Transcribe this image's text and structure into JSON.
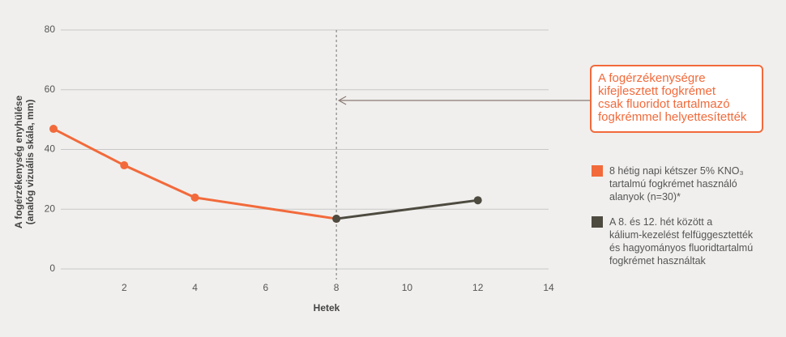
{
  "chart_data": {
    "type": "line",
    "x": [
      0,
      2,
      4,
      8,
      12
    ],
    "series": [
      {
        "name": "8 hétig napi kétszer 5% KNO₃\ntartalmú fogkrémet használó\nalanyok (n=30)*",
        "color": "#f26a3b",
        "values": [
          46.9,
          34.7,
          23.9,
          16.8,
          null
        ]
      },
      {
        "name": "A 8. és 12. hét között a\nkálium-kezelést felfüggesztették\nés hagyományos fluoridtartalmú\nfogkrémet használtak",
        "color": "#4d4a40",
        "values": [
          null,
          null,
          null,
          16.8,
          23.0
        ]
      }
    ],
    "xlabel": "Hetek",
    "ylabel": "A fogérzékenység enyhülése\n(analóg vizuális skála, mm)",
    "xlim": [
      0,
      14
    ],
    "xticks": [
      2,
      4,
      6,
      8,
      10,
      12,
      14
    ],
    "ylim": [
      0,
      80
    ],
    "yticks": [
      0,
      20,
      40,
      60,
      80
    ],
    "grid": true,
    "vline_x": 8,
    "annotation": "A fogérzékenységre\nkifejlesztett fogkrémet\ncsak fluoridot tartalmazó\nfogkrémmel helyettesítették"
  }
}
